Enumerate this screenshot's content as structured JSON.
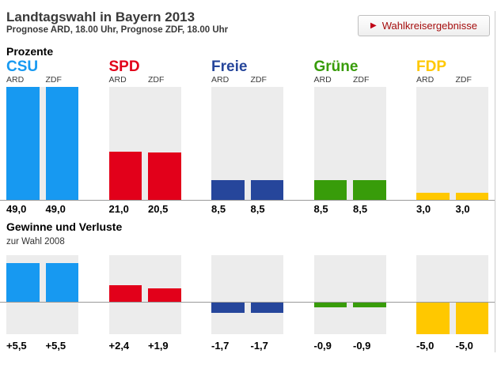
{
  "header": {
    "title": "Landtagswahl in Bayern 2013",
    "subtitle": "Prognose ARD, 18.00 Uhr, Prognose ZDF, 18.00 Uhr",
    "button_label": "Wahlkreisergebnisse",
    "button_icon": "play-triangle"
  },
  "colors": {
    "csu": "#1799F1",
    "spd": "#E2001A",
    "freie": "#26469B",
    "gruene": "#389C0A",
    "fdp": "#FFC800",
    "column_bg": "#ECECEC",
    "axis_line": "#9A9A9A",
    "button_text": "#A50D0D",
    "button_icon": "#C00016",
    "heading_text": "#3A3A3A"
  },
  "chart_data": [
    {
      "type": "bar",
      "title": "Prozente",
      "categories": [
        "CSU",
        "SPD",
        "Freie",
        "Grüne",
        "FDP"
      ],
      "party_colors": [
        "#1799F1",
        "#E2001A",
        "#26469B",
        "#389C0A",
        "#FFC800"
      ],
      "series": [
        {
          "name": "ARD",
          "values": [
            49.0,
            21.0,
            8.5,
            8.5,
            3.0
          ],
          "labels": [
            "49,0",
            "21,0",
            "8,5",
            "8,5",
            "3,0"
          ]
        },
        {
          "name": "ZDF",
          "values": [
            49.0,
            20.5,
            8.5,
            8.5,
            3.0
          ],
          "labels": [
            "49,0",
            "20,5",
            "8,5",
            "8,5",
            "3,0"
          ]
        }
      ],
      "ylim": [
        0,
        49
      ],
      "grid": false,
      "legend": "none"
    },
    {
      "type": "bar",
      "title": "Gewinne und Verluste",
      "subtitle": "zur Wahl 2008",
      "categories": [
        "CSU",
        "SPD",
        "Freie",
        "Grüne",
        "FDP"
      ],
      "party_colors": [
        "#1799F1",
        "#E2001A",
        "#26469B",
        "#389C0A",
        "#FFC800"
      ],
      "series": [
        {
          "name": "ARD",
          "values": [
            5.5,
            2.4,
            -1.7,
            -0.9,
            -5.0
          ],
          "labels": [
            "+5,5",
            "+2,4",
            "-1,7",
            "-0,9",
            "-5,0"
          ]
        },
        {
          "name": "ZDF",
          "values": [
            5.5,
            1.9,
            -1.7,
            -0.9,
            -5.0
          ],
          "labels": [
            "+5,5",
            "+1,9",
            "-1,7",
            "-0,9",
            "-5,0"
          ]
        }
      ],
      "ylim": [
        -5,
        6.6
      ],
      "grid": false,
      "legend": "none"
    }
  ]
}
